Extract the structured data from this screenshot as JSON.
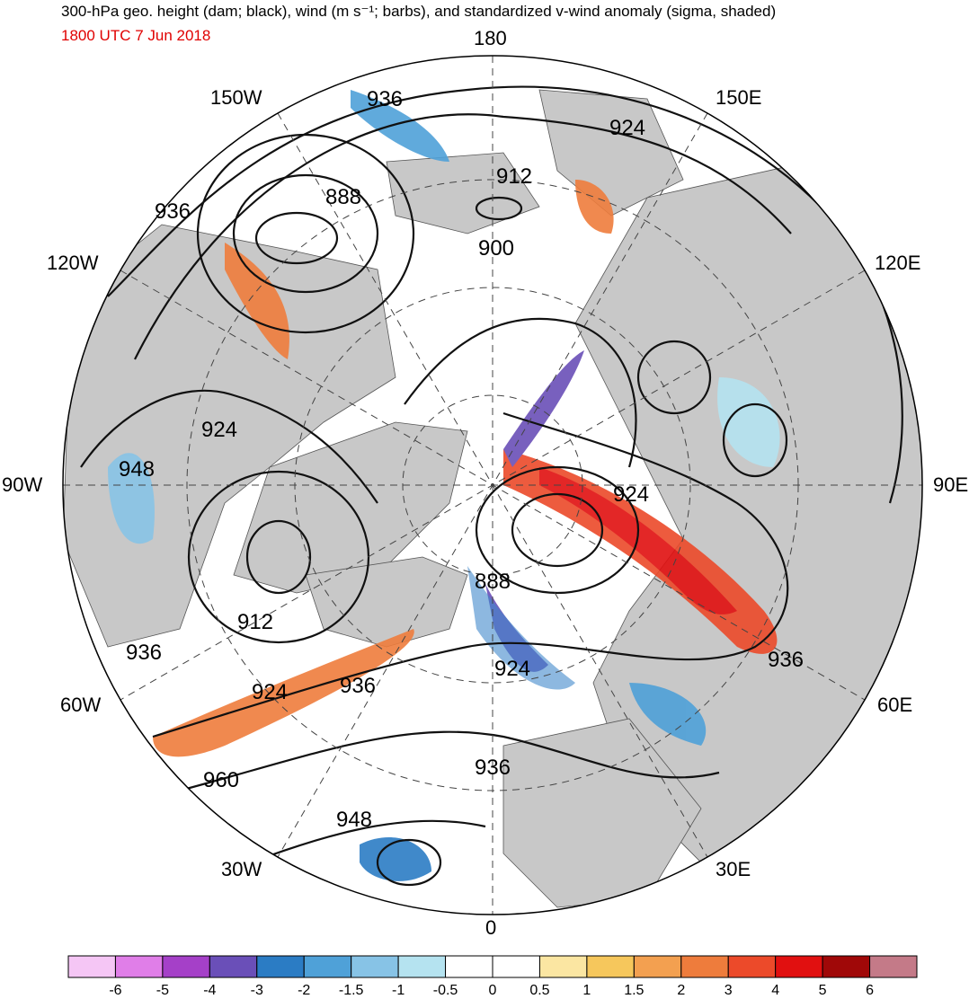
{
  "header": {
    "title": "300-hPa geo. height (dam; black), wind (m s⁻¹; barbs), and standardized v-wind anomaly (sigma, shaded)",
    "valid_time": "1800 UTC 7 Jun 2018"
  },
  "longitude_labels": {
    "top": "180",
    "bottom": "0",
    "left": "90W",
    "right": "90E",
    "upper_left_1": "150W",
    "upper_left_2": "120W",
    "upper_right_1": "150E",
    "upper_right_2": "120E",
    "lower_left_1": "60W",
    "lower_left_2": "30W",
    "lower_right_1": "60E",
    "lower_right_2": "30E"
  },
  "contour_labels": [
    "936",
    "924",
    "912",
    "888",
    "900",
    "936",
    "924",
    "948",
    "924",
    "888",
    "924",
    "912",
    "936",
    "924",
    "936",
    "936",
    "960",
    "948",
    "936"
  ],
  "colorbar": {
    "labels": [
      "-6",
      "-5",
      "-4",
      "-3",
      "-2",
      "-1.5",
      "-1",
      "-0.5",
      "0",
      "0.5",
      "1",
      "1.5",
      "2",
      "3",
      "4",
      "5",
      "6"
    ],
    "colors": [
      "#f5c6f5",
      "#e07ee8",
      "#a540c8",
      "#6a4fb8",
      "#2b7cc4",
      "#4fa1d8",
      "#87c3e6",
      "#b5e3f0",
      "#ffffff",
      "#ffffff",
      "#fbe6a2",
      "#f6c75c",
      "#f3a050",
      "#ee7c3c",
      "#ec4a2a",
      "#e11010",
      "#a00808",
      "#c47a88"
    ]
  },
  "palette": {
    "land": "#c8c8c8",
    "ocean": "#ffffff",
    "contour": "#111111",
    "title_red": "#e00000"
  }
}
